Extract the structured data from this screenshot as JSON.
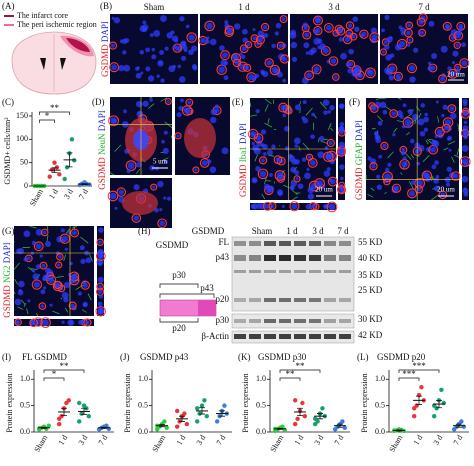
{
  "panels": {
    "A": {
      "label": "(A)",
      "legend": [
        "The infarct core",
        "The peri ischemic region"
      ]
    },
    "B": {
      "label": "(B)",
      "columns": [
        "Sham",
        "1 d",
        "3 d",
        "7 d"
      ],
      "stain": [
        "GSDMD",
        "DAPI"
      ],
      "scale": "20 um"
    },
    "D": {
      "label": "(D)",
      "stain": [
        "GSDMD",
        "NeuN",
        "DAPI"
      ],
      "scale": "5 um"
    },
    "E": {
      "label": "(E)",
      "stain": [
        "GSDMD",
        "Iba1",
        "DAPI"
      ],
      "scale": "20 um"
    },
    "F": {
      "label": "(F)",
      "stain": [
        "GSDMD",
        "GFAP",
        "DAPI"
      ],
      "scale": "20 um"
    },
    "G": {
      "label": "(G)",
      "stain": [
        "GSDMD",
        "NG2",
        "DAPI"
      ]
    },
    "H": {
      "label": "(H)",
      "schematic": {
        "title": "GSDMD",
        "fragments": [
          "p30",
          "p43",
          "p20"
        ]
      },
      "blot": {
        "protein": "GSDMD",
        "lanes": [
          "Sham",
          "1 d",
          "3 d",
          "7 d"
        ],
        "bands": [
          "FL",
          "p43",
          "p20",
          "p30",
          "β-Actin"
        ],
        "markers": [
          "55 KD",
          "40 KD",
          "35 KD",
          "25 KD",
          "30 KD",
          "42 KD"
        ]
      }
    }
  },
  "chart_data": [
    {
      "type": "scatter",
      "label": "(C)",
      "ylabel": "GSDMD+ cells/mm²",
      "categories": [
        "Sham",
        "1 d",
        "3 d",
        "7 d"
      ],
      "colors": [
        "#2ecc40",
        "#e8343c",
        "#17a06b",
        "#3a7fd5"
      ],
      "points": [
        [
          0,
          0,
          0,
          0,
          0
        ],
        [
          20,
          35,
          50,
          40,
          25
        ],
        [
          15,
          40,
          70,
          100,
          55
        ],
        [
          2,
          5,
          8,
          4,
          3
        ]
      ],
      "means": [
        0,
        34,
        56,
        4
      ],
      "errors": [
        0,
        5,
        15,
        1
      ],
      "ylim": [
        0,
        150
      ],
      "yticks": [
        0,
        50,
        100,
        150
      ],
      "annotations": [
        "*",
        "**"
      ]
    },
    {
      "type": "scatter",
      "label": "(I)",
      "title": "FL GSDMD",
      "ylabel": "Protein expression",
      "categories": [
        "Sham",
        "1 d",
        "3 d",
        "7 d"
      ],
      "colors": [
        "#2ecc40",
        "#e8343c",
        "#17a06b",
        "#3a7fd5"
      ],
      "points": [
        [
          0.05,
          0.08,
          0.1,
          0.06,
          0.12,
          0.07
        ],
        [
          0.15,
          0.3,
          0.45,
          0.55,
          0.6,
          0.25
        ],
        [
          0.2,
          0.35,
          0.5,
          0.45,
          0.3,
          0.55
        ],
        [
          0.05,
          0.08,
          0.1,
          0.12,
          0.06
        ]
      ],
      "means": [
        0.08,
        0.38,
        0.39,
        0.08
      ],
      "errors": [
        0.01,
        0.07,
        0.06,
        0.01
      ],
      "ylim": [
        0,
        1.1
      ],
      "yticks": [
        {
          "value": 0,
          "label": "0.0"
        },
        {
          "value": 0.5,
          "label": "0.5"
        },
        {
          "value": 1,
          "label": "1.0"
        }
      ],
      "annotations": [
        "*",
        "**"
      ]
    },
    {
      "type": "scatter",
      "label": "(J)",
      "title": "GSDMD p43",
      "ylabel": "Protein expression",
      "categories": [
        "Sham",
        "1 d",
        "3 d",
        "7 d"
      ],
      "colors": [
        "#2ecc40",
        "#e8343c",
        "#17a06b",
        "#3a7fd5"
      ],
      "points": [
        [
          0.05,
          0.1,
          0.15,
          0.2,
          0.08,
          0.12
        ],
        [
          0.1,
          0.2,
          0.3,
          0.35,
          0.15,
          0.4
        ],
        [
          0.2,
          0.35,
          0.5,
          0.6,
          0.3,
          0.45
        ],
        [
          0.2,
          0.3,
          0.4,
          0.5,
          0.35
        ]
      ],
      "means": [
        0.12,
        0.25,
        0.4,
        0.35
      ],
      "errors": [
        0.02,
        0.05,
        0.06,
        0.05
      ],
      "ylim": [
        0,
        1.1
      ],
      "yticks": [
        {
          "value": 0,
          "label": "0.0"
        },
        {
          "value": 0.5,
          "label": "0.5"
        },
        {
          "value": 1,
          "label": "1.0"
        }
      ],
      "annotations": []
    },
    {
      "type": "scatter",
      "label": "(K)",
      "title": "GSDMD p30",
      "ylabel": "Protein expression",
      "categories": [
        "Sham",
        "1 d",
        "3 d",
        "7 d"
      ],
      "colors": [
        "#2ecc40",
        "#e8343c",
        "#17a06b",
        "#3a7fd5"
      ],
      "points": [
        [
          0.02,
          0.05,
          0.08,
          0.1,
          0.04,
          0.06
        ],
        [
          0.15,
          0.25,
          0.4,
          0.55,
          0.3,
          0.6
        ],
        [
          0.15,
          0.2,
          0.35,
          0.45,
          0.3,
          0.25
        ],
        [
          0.05,
          0.1,
          0.15,
          0.2,
          0.08
        ]
      ],
      "means": [
        0.06,
        0.38,
        0.3,
        0.12
      ],
      "errors": [
        0.01,
        0.07,
        0.05,
        0.03
      ],
      "ylim": [
        0,
        1.1
      ],
      "yticks": [
        {
          "value": 0,
          "label": "0.0"
        },
        {
          "value": 0.5,
          "label": "0.5"
        },
        {
          "value": 1,
          "label": "1.0"
        }
      ],
      "annotations": [
        "**",
        "**"
      ]
    },
    {
      "type": "scatter",
      "label": "(L)",
      "title": "GSDMD p20",
      "ylabel": "Protein expression",
      "categories": [
        "Sham",
        "1 d",
        "3 d",
        "7 d"
      ],
      "colors": [
        "#2ecc40",
        "#e8343c",
        "#17a06b",
        "#3a7fd5"
      ],
      "points": [
        [
          0.02,
          0.03,
          0.05,
          0.04,
          0.02,
          0.03
        ],
        [
          0.3,
          0.5,
          0.7,
          0.85,
          0.6,
          0.45
        ],
        [
          0.3,
          0.45,
          0.6,
          0.8,
          0.55,
          0.5
        ],
        [
          0.05,
          0.1,
          0.15,
          0.2,
          0.1
        ]
      ],
      "means": [
        0.03,
        0.6,
        0.53,
        0.12
      ],
      "errors": [
        0.01,
        0.08,
        0.07,
        0.03
      ],
      "ylim": [
        0,
        1.1
      ],
      "yticks": [
        {
          "value": 0,
          "label": "0.0"
        },
        {
          "value": 0.5,
          "label": "0.5"
        },
        {
          "value": 1,
          "label": "1.0"
        }
      ],
      "annotations": [
        "***",
        "***"
      ]
    }
  ]
}
